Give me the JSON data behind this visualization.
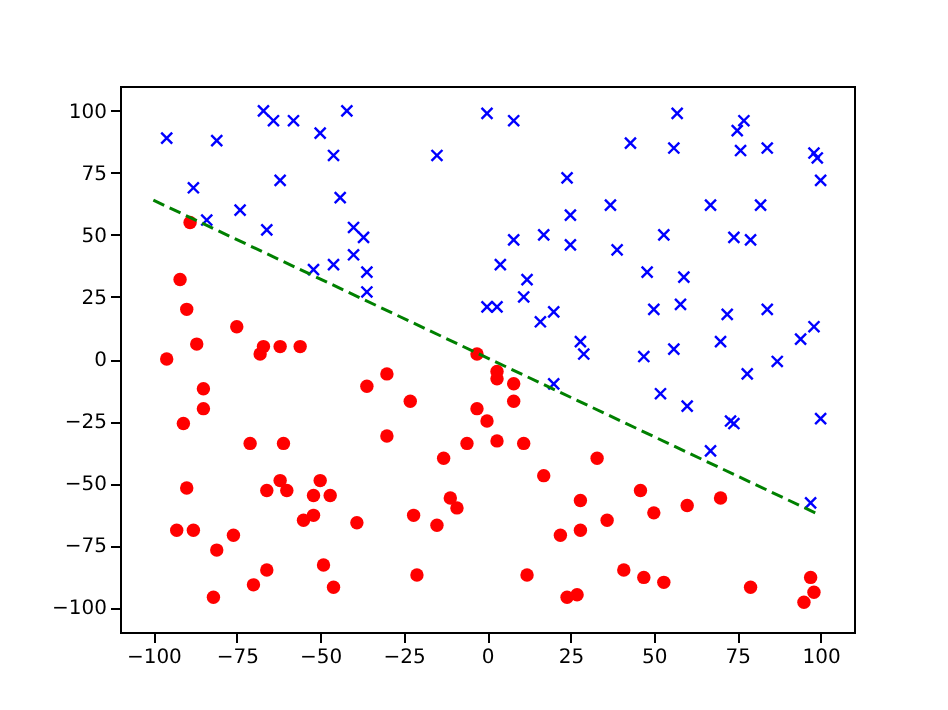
{
  "chart_data": {
    "type": "scatter",
    "xlim": [
      -110,
      110
    ],
    "ylim": [
      -110,
      110
    ],
    "xticks": [
      -100,
      -75,
      -50,
      -25,
      0,
      25,
      50,
      75,
      100
    ],
    "yticks": [
      -100,
      -75,
      -50,
      -25,
      0,
      25,
      50,
      75,
      100
    ],
    "grid": false,
    "series": [
      {
        "marker": "cross",
        "color": "#0000ff",
        "x": [
          0,
          8,
          43,
          57,
          56,
          75,
          77,
          76,
          84,
          98,
          99,
          100,
          24,
          25,
          37,
          67,
          82,
          8,
          17,
          25,
          39,
          53,
          74,
          79,
          4,
          12,
          11,
          48,
          59,
          0,
          3,
          20,
          16,
          50,
          58,
          72,
          84,
          98,
          94,
          28,
          29,
          47,
          56,
          70,
          87,
          20,
          52,
          60,
          78,
          73,
          74,
          100,
          67,
          97,
          -96,
          -81,
          -67,
          -64,
          -58,
          -42,
          -50,
          -46,
          -15,
          -88,
          -62,
          -44,
          -74,
          -84,
          -66,
          -40,
          -37,
          -40,
          -46,
          -52,
          -36,
          -36
        ],
        "values": [
          99,
          96,
          87,
          99,
          85,
          92,
          96,
          84,
          85,
          83,
          81,
          72,
          73,
          58,
          62,
          62,
          62,
          48,
          50,
          46,
          44,
          50,
          49,
          48,
          38,
          32,
          25,
          35,
          33,
          21,
          21,
          19,
          15,
          20,
          22,
          18,
          20,
          13,
          8,
          7,
          2,
          1,
          4,
          7,
          -1,
          -10,
          -14,
          -19,
          -6,
          -25,
          -26,
          -24,
          -37,
          -58,
          89,
          88,
          100,
          96,
          96,
          100,
          91,
          82,
          82,
          69,
          72,
          65,
          60,
          56,
          52,
          53,
          49,
          42,
          38,
          36,
          35,
          27
        ]
      },
      {
        "marker": "circle",
        "color": "#ff0000",
        "x": [
          -89,
          -92,
          -90,
          -75,
          -87,
          -96,
          -67,
          -68,
          -62,
          -56,
          -3,
          -85,
          -85,
          -91,
          -36,
          -30,
          -23,
          -30,
          -3,
          0,
          -6,
          -71,
          -61,
          -90,
          -66,
          -62,
          -60,
          -50,
          -52,
          -47,
          -55,
          -52,
          -39,
          -22,
          -13,
          -11,
          -9,
          -15,
          -93,
          -88,
          -81,
          -76,
          -82,
          -70,
          -66,
          -49,
          -46,
          -21,
          3,
          3,
          8,
          8,
          3,
          11,
          33,
          17,
          46,
          28,
          50,
          60,
          70,
          36,
          22,
          28,
          12,
          41,
          47,
          53,
          24,
          27,
          79,
          97,
          98,
          95
        ],
        "values": [
          55,
          32,
          20,
          13,
          6,
          0,
          5,
          2,
          5,
          5,
          2,
          -12,
          -20,
          -26,
          -11,
          -6,
          -17,
          -31,
          -20,
          -25,
          -34,
          -34,
          -34,
          -52,
          -53,
          -49,
          -53,
          -49,
          -55,
          -55,
          -65,
          -63,
          -66,
          -63,
          -40,
          -56,
          -60,
          -67,
          -69,
          -69,
          -77,
          -71,
          -96,
          -91,
          -85,
          -83,
          -92,
          -87,
          -5,
          -8,
          -10,
          -17,
          -33,
          -34,
          -40,
          -47,
          -53,
          -57,
          -62,
          -59,
          -56,
          -65,
          -71,
          -69,
          -87,
          -85,
          -88,
          -90,
          -96,
          -95,
          -92,
          -88,
          -94,
          -98
        ]
      },
      {
        "type": "line",
        "line_style": "dashed",
        "color": "#008000",
        "x": [
          -100,
          100
        ],
        "values": [
          64,
          -63
        ]
      }
    ]
  }
}
